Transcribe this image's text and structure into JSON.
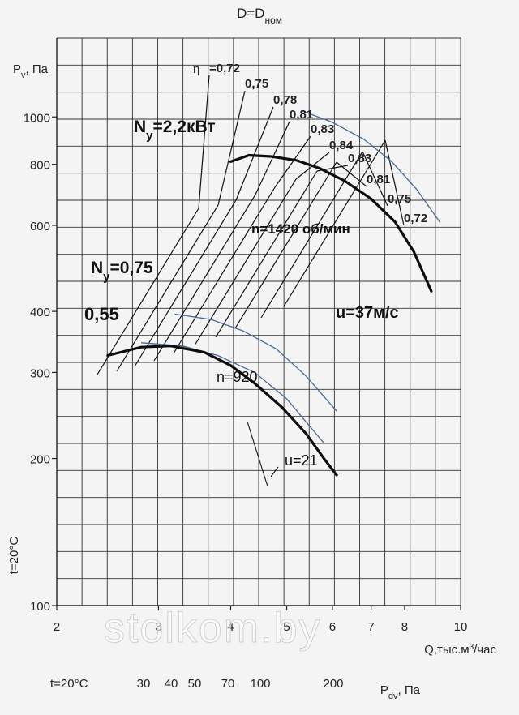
{
  "chart_data": {
    "type": "line",
    "title": "D=D",
    "title_sub": "ном",
    "y_axis": {
      "label": "P",
      "label_sub": "v",
      "label_suffix": ", Па",
      "scale": "log",
      "range": [
        100,
        1450
      ],
      "ticks": [
        100,
        200,
        300,
        400,
        600,
        800,
        1000
      ],
      "tick_labels": [
        "100",
        "200",
        "300",
        "400",
        "600",
        "800",
        "1000"
      ],
      "side_note": "t=20°C"
    },
    "x_axis": {
      "label": "Q,тыс.м",
      "label_sup": "3",
      "label_suffix": "/час",
      "scale": "log",
      "range": [
        2,
        10
      ],
      "ticks": [
        2,
        3,
        4,
        5,
        6,
        7,
        8,
        10
      ],
      "tick_labels": [
        "2",
        "3",
        "4",
        "5",
        "6",
        "7",
        "8",
        "10"
      ]
    },
    "secondary_x_axis": {
      "prefix": "t=20°C",
      "label": "P",
      "label_sub": "dv",
      "label_suffix": ", Па",
      "ticks": [
        "30",
        "40",
        "50",
        "70",
        "100",
        "200"
      ]
    },
    "grid": true,
    "series": [
      {
        "name": "n=1420 об/мин",
        "q": [
          4.0,
          4.3,
          4.7,
          5.2,
          5.7,
          6.3,
          7.0,
          7.7,
          8.3,
          8.9
        ],
        "p": [
          810,
          835,
          830,
          815,
          785,
          740,
          680,
          610,
          530,
          440
        ]
      },
      {
        "name": "n=920",
        "q": [
          2.45,
          2.8,
          3.15,
          3.6,
          4.0,
          4.4,
          4.9,
          5.4,
          5.8,
          6.1
        ],
        "p": [
          325,
          338,
          340,
          330,
          310,
          285,
          255,
          225,
          200,
          185
        ]
      }
    ],
    "power_curves": [
      {
        "label": "N",
        "label_sub": "y",
        "label_suffix": "=2,2кВт",
        "q": [
          5.3,
          6.0,
          6.8,
          7.6,
          8.4,
          9.2
        ],
        "p": [
          1030,
          975,
          900,
          810,
          710,
          610
        ]
      },
      {
        "label": "N",
        "label_sub": "y",
        "label_suffix": "=0,75",
        "q": [
          3.2,
          3.7,
          4.2,
          4.8,
          5.4,
          6.1
        ],
        "p": [
          395,
          385,
          365,
          335,
          295,
          250
        ]
      },
      {
        "label": "0,55",
        "q": [
          2.8,
          3.3,
          3.8,
          4.4,
          5.0,
          5.8
        ],
        "p": [
          345,
          340,
          325,
          300,
          265,
          215
        ]
      }
    ],
    "efficiency_label_prefix": "η",
    "efficiency_labels": [
      "=0,72",
      "0,75",
      "0,78",
      "0,81",
      "0,83",
      "0,84",
      "0,83",
      "0,81",
      "0,75",
      "0,72"
    ],
    "annotations": [
      "n=1420 об/мин",
      "u=37м/с",
      "n=920",
      "u=21"
    ]
  },
  "watermark": "stolkom.by"
}
